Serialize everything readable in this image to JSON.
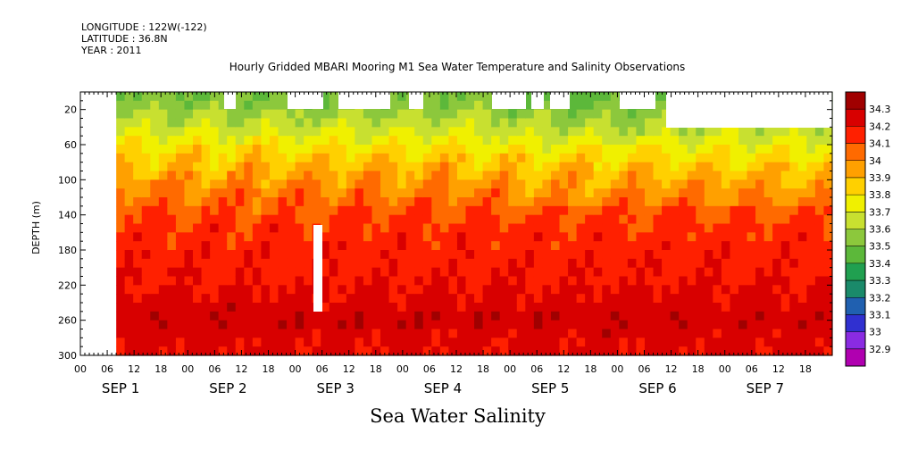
{
  "header": {
    "meta_lines": [
      "LONGITUDE : 122W(-122)",
      "LATITUDE : 36.8N",
      "YEAR : 2011"
    ],
    "title": "Hourly Gridded MBARI Mooring M1 Sea Water Temperature and Salinity Observations",
    "bottom_title": "Sea Water Salinity"
  },
  "chart_data": {
    "type": "heatmap",
    "title": "Hourly Gridded MBARI Mooring M1 Sea Water Temperature and Salinity Observations",
    "xlabel": "",
    "ylabel": "DEPTH (m)",
    "y_axis": {
      "range": [
        0,
        300
      ],
      "reversed": true,
      "ticks": [
        20,
        60,
        100,
        140,
        180,
        220,
        260,
        300
      ]
    },
    "x_axis": {
      "range_hours": [
        0,
        168
      ],
      "hour_tick_labels": [
        "00",
        "06",
        "12",
        "18",
        "00",
        "06",
        "12",
        "18",
        "00",
        "06",
        "12",
        "18",
        "00",
        "06",
        "12",
        "18",
        "00",
        "06",
        "12",
        "18",
        "00",
        "06",
        "12",
        "18",
        "00",
        "06",
        "12",
        "18"
      ],
      "day_labels": [
        "SEP 1",
        "SEP 2",
        "SEP 3",
        "SEP 4",
        "SEP 5",
        "SEP 6",
        "SEP 7"
      ]
    },
    "colorbar": {
      "levels": [
        32.9,
        33,
        33.1,
        33.2,
        33.3,
        33.4,
        33.5,
        33.6,
        33.7,
        33.8,
        33.9,
        34,
        34.1,
        34.2,
        34.3
      ],
      "labels": [
        "34.3",
        "34.2",
        "34.1",
        "34",
        "33.9",
        "33.8",
        "33.7",
        "33.6",
        "33.5",
        "33.4",
        "33.3",
        "33.2",
        "33.1",
        "33",
        "32.9"
      ],
      "colors": [
        "#b000b0",
        "#8a2be2",
        "#3030d0",
        "#2060b0",
        "#1a8a6a",
        "#20a050",
        "#5cb83a",
        "#8cc83c",
        "#c8e030",
        "#f0f000",
        "#ffd000",
        "#ffa000",
        "#ff6a00",
        "#ff2000",
        "#d80000",
        "#a00000"
      ]
    },
    "profile": [
      {
        "depth": 10,
        "value": 33.52
      },
      {
        "depth": 20,
        "value": 33.58
      },
      {
        "depth": 40,
        "value": 33.66
      },
      {
        "depth": 60,
        "value": 33.78
      },
      {
        "depth": 80,
        "value": 33.88
      },
      {
        "depth": 100,
        "value": 33.97
      },
      {
        "depth": 120,
        "value": 34.04
      },
      {
        "depth": 140,
        "value": 34.1
      },
      {
        "depth": 160,
        "value": 34.14
      },
      {
        "depth": 180,
        "value": 34.16
      },
      {
        "depth": 200,
        "value": 34.18
      },
      {
        "depth": 220,
        "value": 34.2
      },
      {
        "depth": 240,
        "value": 34.23
      },
      {
        "depth": 260,
        "value": 34.28
      },
      {
        "depth": 280,
        "value": 34.23
      },
      {
        "depth": 300,
        "value": 34.22
      }
    ],
    "grid": false,
    "legend": "right"
  }
}
